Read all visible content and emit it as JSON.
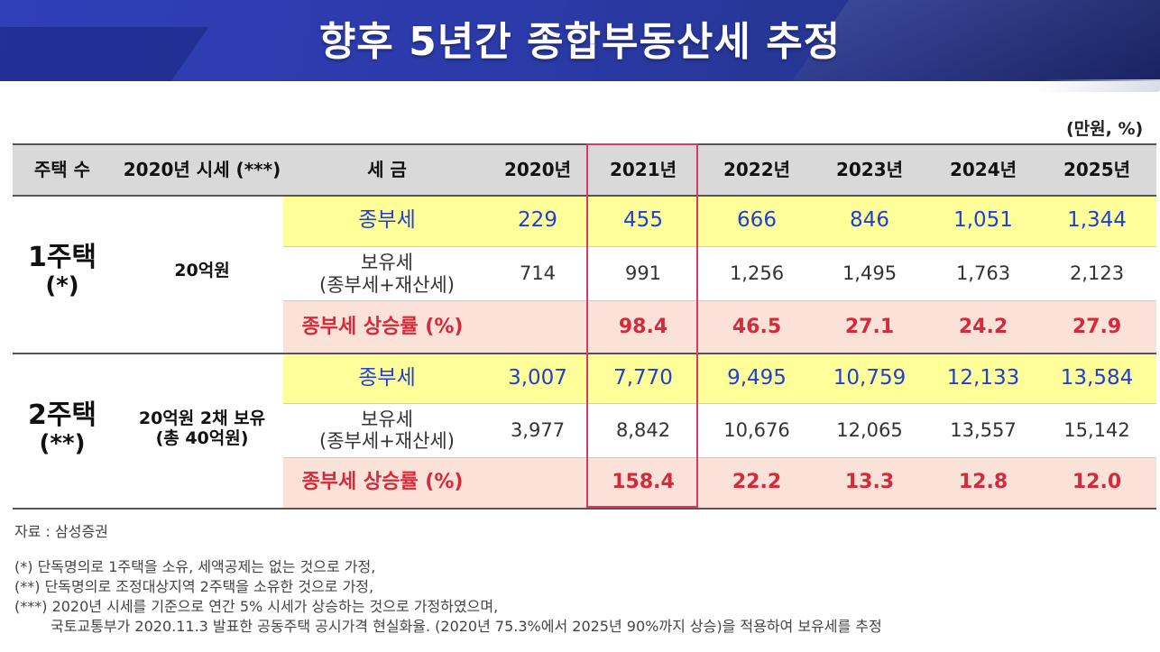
{
  "title": "향후 5년간 종합부동산세 추정",
  "unit": "(만원, %)",
  "header": {
    "houses": "주택 수",
    "price": "2020년 시세 (***)",
    "tax": "세 금",
    "years": [
      "2020년",
      "2021년",
      "2022년",
      "2023년",
      "2024년",
      "2025년"
    ]
  },
  "groups": [
    {
      "houses_line1": "1주택",
      "houses_line2": "(*)",
      "price_line1": "20억원",
      "price_line2": "",
      "row1_label": "종부세",
      "row1_values": [
        "229",
        "455",
        "666",
        "846",
        "1,051",
        "1,344"
      ],
      "row2_label_line1": "보유세",
      "row2_label_line2": "(종부세+재산세)",
      "row2_values": [
        "714",
        "991",
        "1,256",
        "1,495",
        "1,763",
        "2,123"
      ],
      "row3_label": "종부세 상승률 (%)",
      "row3_values": [
        "",
        "98.4",
        "46.5",
        "27.1",
        "24.2",
        "27.9"
      ]
    },
    {
      "houses_line1": "2주택",
      "houses_line2": "(**)",
      "price_line1": "20억원 2채 보유",
      "price_line2": "(총 40억원)",
      "row1_label": "종부세",
      "row1_values": [
        "3,007",
        "7,770",
        "9,495",
        "10,759",
        "12,133",
        "13,584"
      ],
      "row2_label_line1": "보유세",
      "row2_label_line2": "(종부세+재산세)",
      "row2_values": [
        "3,977",
        "8,842",
        "10,676",
        "12,065",
        "13,557",
        "15,142"
      ],
      "row3_label": "종부세 상승률 (%)",
      "row3_values": [
        "",
        "158.4",
        "22.2",
        "13.3",
        "12.8",
        "12.0"
      ]
    }
  ],
  "source": "자료 : 삼성증권",
  "notes": [
    "(*) 단독명의로 1주택을 소유, 세액공제는 없는 것으로 가정,",
    "(**) 단독명의로 조정대상지역 2주택을 소유한 것으로 가정,",
    "(***) 2020년 시세를 기준으로 연간 5% 시세가 상승하는 것으로 가정하였으며,",
    "국토교통부가 2020.11.3 발표한 공동주택 공시가격 현실화율. (2020년 75.3%에서 2025년 90%까지 상승)을 적용하여 보유세를 추정"
  ],
  "colors": {
    "banner": "#2b3aa8",
    "header_bg": "#d9d9d9",
    "yellow_row": "#ffff99",
    "pink_row": "#fbe2d8",
    "blue_text": "#1f3fd6",
    "red_text": "#d42a3c",
    "highlight_border": "#d9386a"
  }
}
